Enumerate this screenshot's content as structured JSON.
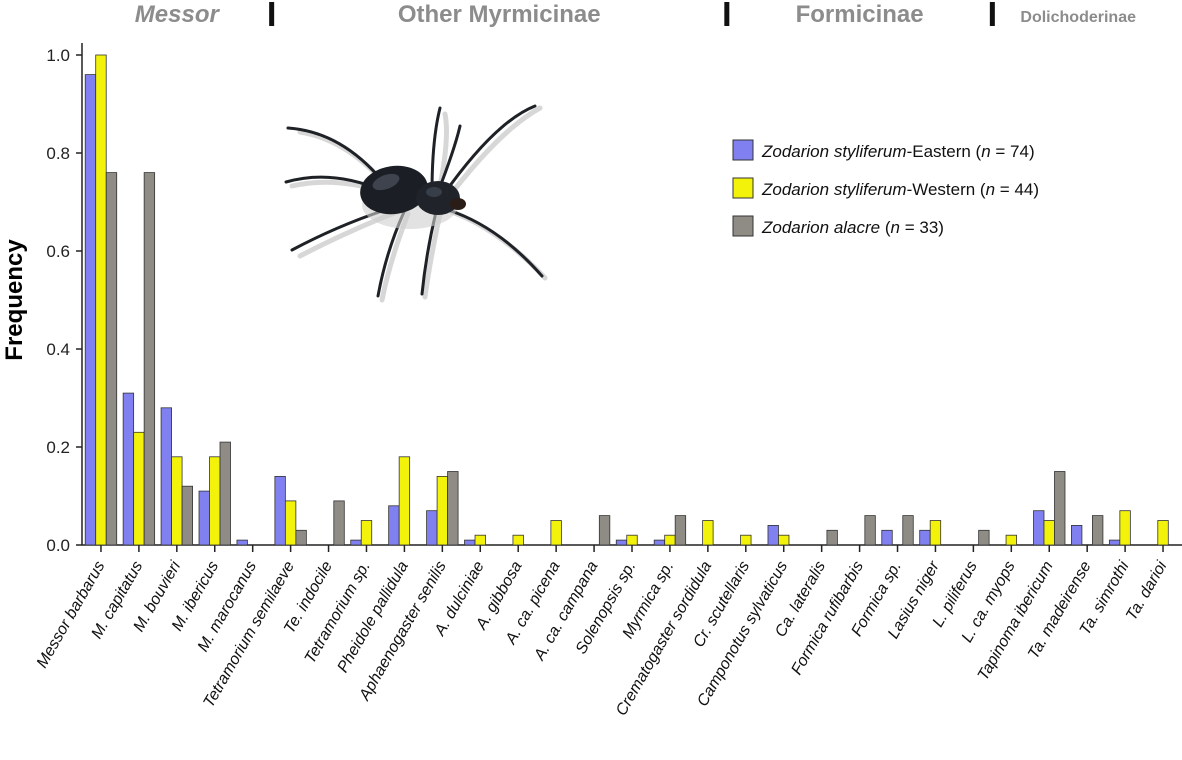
{
  "chart_data": {
    "type": "bar",
    "ylabel": "Frequency",
    "ylim": [
      0,
      1.0
    ],
    "yticks": [
      "0.0",
      "0.2",
      "0.4",
      "0.6",
      "0.8",
      "1.0"
    ],
    "grid": false,
    "legend_position": "top-right",
    "groups": [
      {
        "label": "Messor",
        "style": "italic",
        "start": 0,
        "end": 4
      },
      {
        "label": "Other Myrmicinae",
        "style": "normal",
        "start": 5,
        "end": 16
      },
      {
        "label": "Formicinae",
        "style": "normal",
        "start": 17,
        "end": 23
      },
      {
        "label": "Dolichoderinae",
        "style": "normal",
        "start": 24,
        "end": 27
      }
    ],
    "categories": [
      "Messor barbarus",
      "M. capitatus",
      "M. bouvieri",
      "M. ibericus",
      "M. marocanus",
      "Tetramorium semilaeve",
      "Te. indocile",
      "Tetramorium sp.",
      "Pheidole pallidula",
      "Aphaenogaster senilis",
      "A. dulciniae",
      "A. gibbosa",
      "A. ca. picena",
      "A. ca. campana",
      "Solenopsis sp.",
      "Myrmica  sp.",
      "Crematogaster sordidula",
      "Cr. scutellaris",
      "Camponotus sylvaticus",
      "Ca. lateralis",
      "Formica rufibarbis",
      "Formica sp.",
      "Lasius niger",
      "L. piliferus",
      "L. ca. myops",
      "Tapinoma ibericum",
      "Ta. madeirense",
      "Ta. simrothi",
      "Ta. darioi"
    ],
    "series": [
      {
        "legend_italic": "Zodarion styliferum",
        "legend_suffix": "-Eastern (",
        "legend_n": "n",
        "legend_count": " = 74)",
        "color": "#8080f0",
        "values": [
          0.96,
          0.31,
          0.28,
          0.11,
          0.01,
          0.14,
          0,
          0.01,
          0.08,
          0.07,
          0.01,
          0,
          0,
          0,
          0.01,
          0.01,
          0,
          0,
          0.04,
          0,
          0,
          0.03,
          0.03,
          0,
          0,
          0.07,
          0.04,
          0.01,
          0
        ]
      },
      {
        "legend_italic": "Zodarion styliferum",
        "legend_suffix": "-Western (",
        "legend_n": "n",
        "legend_count": " = 44)",
        "color": "#f2f20a",
        "values": [
          1.0,
          0.23,
          0.18,
          0.18,
          0,
          0.09,
          0,
          0.05,
          0.18,
          0.14,
          0.02,
          0.02,
          0.05,
          0,
          0.02,
          0.02,
          0.05,
          0.02,
          0.02,
          0,
          0,
          0,
          0.05,
          0,
          0.02,
          0.05,
          0,
          0.07,
          0.05
        ]
      },
      {
        "legend_italic": "Zodarion alacre",
        "legend_suffix": " (",
        "legend_n": "n",
        "legend_count": " = 33)",
        "color": "#8f8c85",
        "values": [
          0.76,
          0.76,
          0.12,
          0.21,
          0,
          0.03,
          0.09,
          0,
          0,
          0.15,
          0,
          0,
          0,
          0.06,
          0,
          0.06,
          0,
          0,
          0,
          0.03,
          0.06,
          0.06,
          0,
          0.03,
          0,
          0.15,
          0.06,
          0,
          0
        ]
      }
    ]
  },
  "illustration": {
    "icon": "spider-icon",
    "description_label": ""
  }
}
